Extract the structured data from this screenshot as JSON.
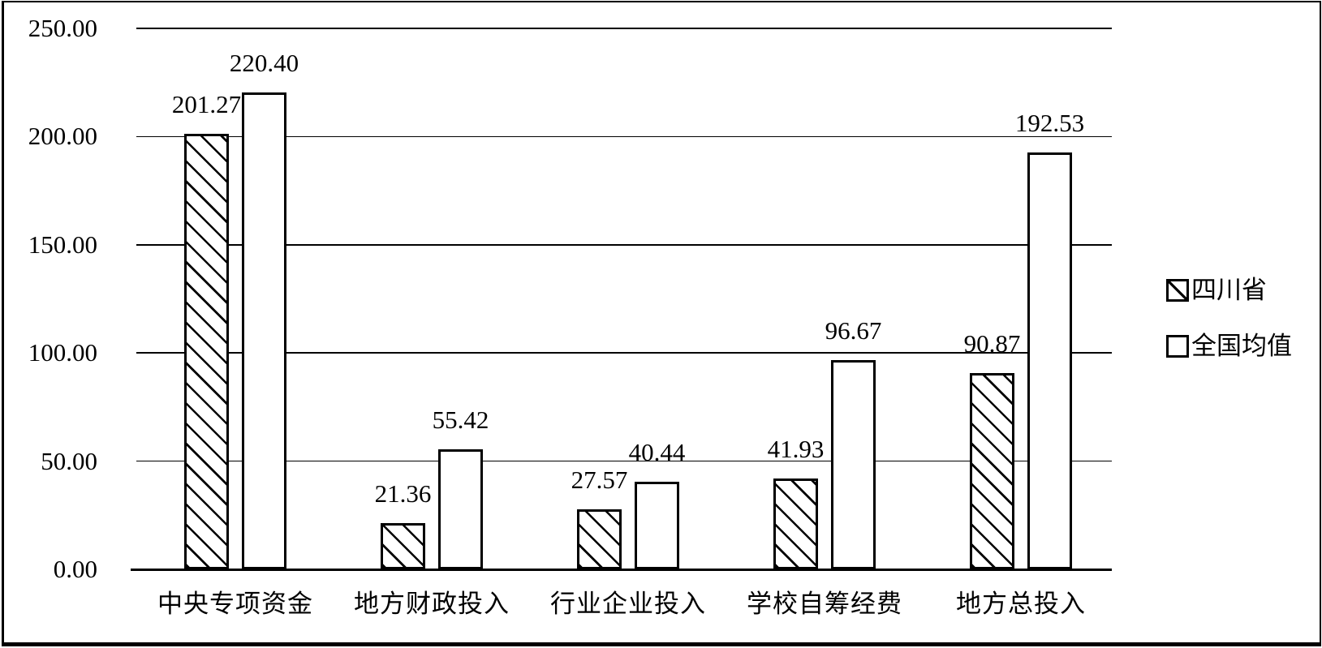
{
  "chart_data": {
    "type": "bar",
    "title": "",
    "xlabel": "",
    "ylabel": "",
    "categories": [
      "中央专项资金",
      "地方财政投入",
      "行业企业投入",
      "学校自筹经费",
      "地方总投入"
    ],
    "series": [
      {
        "name": "四川省",
        "pattern": "diagonal-hatch",
        "values": [
          201.27,
          21.36,
          27.57,
          41.93,
          90.87
        ],
        "labels": [
          "201.27",
          "21.36",
          "27.57",
          "41.93",
          "90.87"
        ]
      },
      {
        "name": "全国均值",
        "pattern": "white-outline",
        "values": [
          220.4,
          55.42,
          40.44,
          96.67,
          192.53
        ],
        "labels": [
          "220.40",
          "55.42",
          "40.44",
          "96.67",
          "192.53"
        ]
      }
    ],
    "ylim": [
      0,
      250
    ],
    "ytick_values": [
      250,
      200,
      150,
      100,
      50,
      0
    ],
    "ytick_labels": [
      "250.00",
      "200.00",
      "150.00",
      "100.00",
      "50.00",
      "0.00"
    ],
    "grid": "horizontal-on",
    "legend_position": "right",
    "colors": {
      "background": "#ffffff",
      "bar_fill": "#ffffff",
      "bar_outline": "#000000",
      "grid": "#000000",
      "text": "#000000"
    }
  },
  "legend": {
    "items": [
      {
        "label": "四川省",
        "swatch": "diagonal-hatch-square"
      },
      {
        "label": "全国均值",
        "swatch": "empty-square"
      }
    ]
  }
}
